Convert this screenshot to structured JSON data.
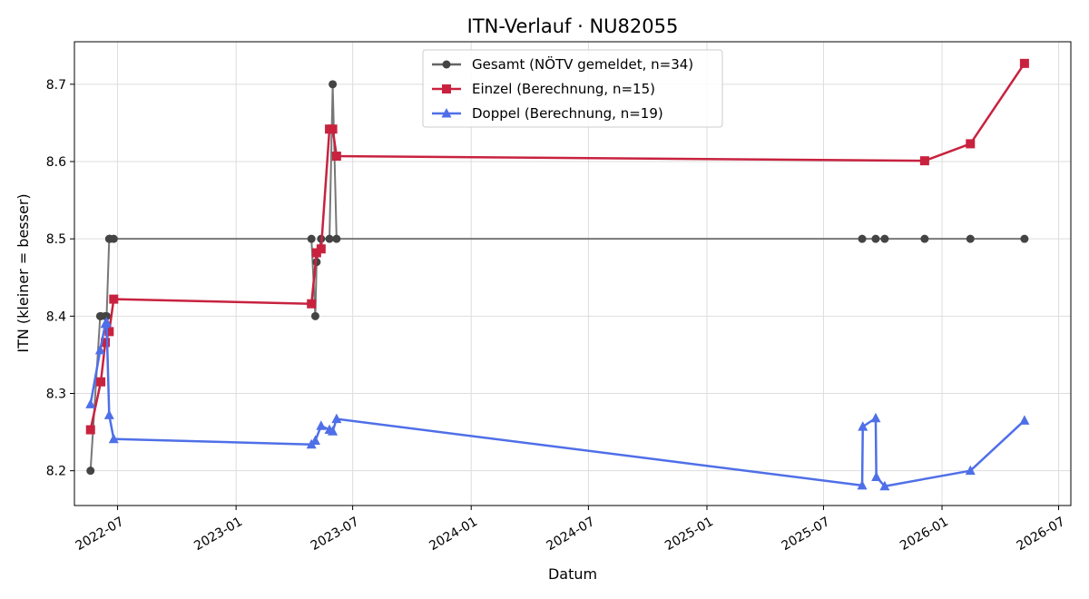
{
  "chart_data": {
    "type": "line",
    "title": "ITN-Verlauf · NU82055",
    "xlabel": "Datum",
    "ylabel": "ITN  (kleiner = besser)",
    "x_ticks": [
      "2022-07",
      "2023-01",
      "2023-07",
      "2024-01",
      "2024-07",
      "2025-01",
      "2025-07",
      "2026-01",
      "2026-07"
    ],
    "y_ticks": [
      "8.2",
      "8.3",
      "8.4",
      "8.5",
      "8.6",
      "8.7"
    ],
    "xlim": [
      "2022-04-25",
      "2026-07-20"
    ],
    "ylim": [
      8.155,
      8.755
    ],
    "grid": true,
    "legend_position": "top-center",
    "series": [
      {
        "name": "Gesamt (NÖTV gemeldet, n=34)",
        "color": "#555555",
        "marker": "circle",
        "points": [
          [
            "2022-05-20",
            8.2
          ],
          [
            "2022-06-04",
            8.4
          ],
          [
            "2022-06-05",
            8.4
          ],
          [
            "2022-06-12",
            8.4
          ],
          [
            "2022-06-14",
            8.4
          ],
          [
            "2022-06-18",
            8.5
          ],
          [
            "2022-06-19",
            8.5
          ],
          [
            "2022-06-25",
            8.5
          ],
          [
            "2023-04-28",
            8.5
          ],
          [
            "2023-05-04",
            8.4
          ],
          [
            "2023-05-06",
            8.47
          ],
          [
            "2023-05-13",
            8.5
          ],
          [
            "2023-05-26",
            8.5
          ],
          [
            "2023-05-31",
            8.7
          ],
          [
            "2023-06-06",
            8.5
          ],
          [
            "2025-08-30",
            8.5
          ],
          [
            "2025-09-20",
            8.5
          ],
          [
            "2025-10-04",
            8.5
          ],
          [
            "2025-12-05",
            8.5
          ],
          [
            "2026-02-14",
            8.5
          ],
          [
            "2026-05-09",
            8.5
          ]
        ]
      },
      {
        "name": "Einzel (Berechnung, n=15)",
        "color": "#c8223f",
        "marker": "square",
        "points": [
          [
            "2022-05-20",
            8.253
          ],
          [
            "2022-06-05",
            8.315
          ],
          [
            "2022-06-12",
            8.366
          ],
          [
            "2022-06-18",
            8.38
          ],
          [
            "2022-06-25",
            8.422
          ],
          [
            "2023-04-28",
            8.416
          ],
          [
            "2023-05-06",
            8.482
          ],
          [
            "2023-05-13",
            8.487
          ],
          [
            "2023-05-26",
            8.642
          ],
          [
            "2023-05-31",
            8.642
          ],
          [
            "2023-06-06",
            8.607
          ],
          [
            "2025-12-05",
            8.601
          ],
          [
            "2026-02-14",
            8.623
          ],
          [
            "2026-05-09",
            8.727
          ]
        ]
      },
      {
        "name": "Doppel (Berechnung, n=19)",
        "color": "#4f6fe8",
        "marker": "triangle",
        "points": [
          [
            "2022-05-20",
            8.286
          ],
          [
            "2022-06-04",
            8.356
          ],
          [
            "2022-06-12",
            8.39
          ],
          [
            "2022-06-14",
            8.392
          ],
          [
            "2022-06-18",
            8.272
          ],
          [
            "2022-06-25",
            8.241
          ],
          [
            "2023-04-28",
            8.234
          ],
          [
            "2023-05-04",
            8.239
          ],
          [
            "2023-05-13",
            8.258
          ],
          [
            "2023-05-26",
            8.253
          ],
          [
            "2023-05-31",
            8.251
          ],
          [
            "2023-06-06",
            8.267
          ],
          [
            "2025-08-30",
            8.181
          ],
          [
            "2025-08-31",
            8.257
          ],
          [
            "2025-09-20",
            8.268
          ],
          [
            "2025-09-21",
            8.192
          ],
          [
            "2025-10-04",
            8.18
          ],
          [
            "2026-02-14",
            8.2
          ],
          [
            "2026-05-09",
            8.265
          ]
        ]
      }
    ]
  }
}
